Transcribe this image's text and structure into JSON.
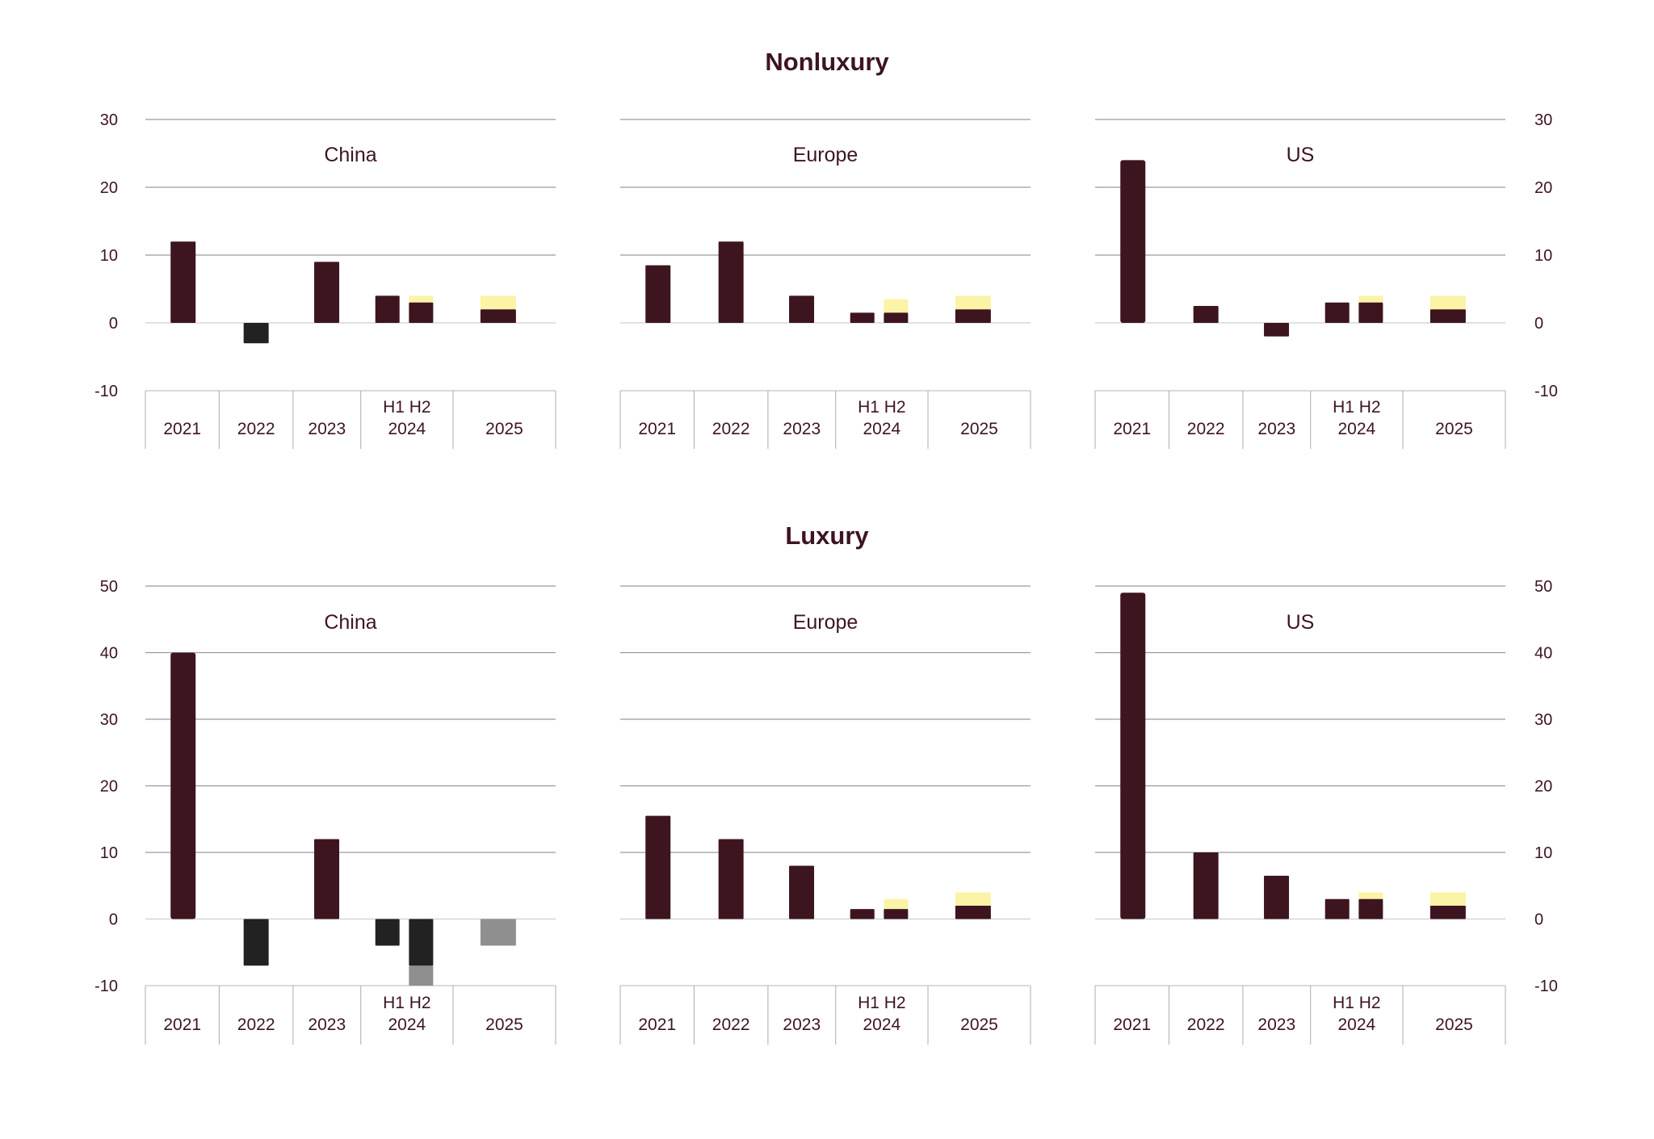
{
  "colors": {
    "actual": "#3d151f",
    "decline": "#222222",
    "forecast_decline": "#8f8f8f",
    "forecast_range": "#fbf3a6",
    "text": "#3d151f"
  },
  "sections": [
    {
      "title": "Nonluxury",
      "ylim": [
        -10,
        30
      ],
      "yticks": [
        "30",
        "20",
        "10",
        "0",
        "-10"
      ]
    },
    {
      "title": "Luxury",
      "ylim": [
        -10,
        50
      ],
      "yticks": [
        "50",
        "40",
        "30",
        "20",
        "10",
        "0",
        "-10"
      ]
    }
  ],
  "categories": [
    "2021",
    "2022",
    "2023",
    "2024",
    "2025"
  ],
  "half_labels": "H1 H2",
  "chart_data": [
    {
      "type": "bar",
      "section": "Nonluxury",
      "title": "China",
      "ylim": [
        -10,
        30
      ],
      "bars": [
        {
          "category": "2021",
          "value": 12,
          "kind": "actual"
        },
        {
          "category": "2022",
          "value": -3,
          "kind": "decline"
        },
        {
          "category": "2023",
          "value": 9,
          "kind": "actual"
        },
        {
          "category": "2024",
          "half": "H1",
          "value": 4,
          "kind": "actual"
        },
        {
          "category": "2024",
          "half": "H2",
          "value": 3,
          "range_top": 4,
          "kind": "actual"
        },
        {
          "category": "2025",
          "value": 2,
          "range_top": 4,
          "kind": "actual"
        }
      ]
    },
    {
      "type": "bar",
      "section": "Nonluxury",
      "title": "Europe",
      "ylim": [
        -10,
        30
      ],
      "bars": [
        {
          "category": "2021",
          "value": 8.5,
          "kind": "actual"
        },
        {
          "category": "2022",
          "value": 12,
          "kind": "actual"
        },
        {
          "category": "2023",
          "value": 4,
          "kind": "actual"
        },
        {
          "category": "2024",
          "half": "H1",
          "value": 1.5,
          "kind": "actual"
        },
        {
          "category": "2024",
          "half": "H2",
          "value": 1.5,
          "range_top": 3.5,
          "kind": "actual"
        },
        {
          "category": "2025",
          "value": 2,
          "range_top": 4,
          "kind": "actual"
        }
      ]
    },
    {
      "type": "bar",
      "section": "Nonluxury",
      "title": "US",
      "ylim": [
        -10,
        30
      ],
      "bars": [
        {
          "category": "2021",
          "value": 24,
          "kind": "actual"
        },
        {
          "category": "2022",
          "value": 2.5,
          "kind": "actual"
        },
        {
          "category": "2023",
          "value": -2,
          "kind": "actual"
        },
        {
          "category": "2024",
          "half": "H1",
          "value": 3,
          "kind": "actual"
        },
        {
          "category": "2024",
          "half": "H2",
          "value": 3,
          "range_top": 4,
          "kind": "actual"
        },
        {
          "category": "2025",
          "value": 2,
          "range_top": 4,
          "kind": "actual"
        }
      ]
    },
    {
      "type": "bar",
      "section": "Luxury",
      "title": "China",
      "ylim": [
        -10,
        50
      ],
      "bars": [
        {
          "category": "2021",
          "value": 40,
          "kind": "actual"
        },
        {
          "category": "2022",
          "value": -7,
          "kind": "decline"
        },
        {
          "category": "2023",
          "value": 12,
          "kind": "actual"
        },
        {
          "category": "2024",
          "half": "H1",
          "value": -4,
          "kind": "decline"
        },
        {
          "category": "2024",
          "half": "H2",
          "value": -7,
          "range_bottom": -10,
          "kind": "decline"
        },
        {
          "category": "2025",
          "value": -4,
          "kind": "forecast_decline"
        }
      ]
    },
    {
      "type": "bar",
      "section": "Luxury",
      "title": "Europe",
      "ylim": [
        -10,
        50
      ],
      "bars": [
        {
          "category": "2021",
          "value": 15.5,
          "kind": "actual"
        },
        {
          "category": "2022",
          "value": 12,
          "kind": "actual"
        },
        {
          "category": "2023",
          "value": 8,
          "kind": "actual"
        },
        {
          "category": "2024",
          "half": "H1",
          "value": 1.5,
          "kind": "actual"
        },
        {
          "category": "2024",
          "half": "H2",
          "value": 1.5,
          "range_top": 3,
          "kind": "actual"
        },
        {
          "category": "2025",
          "value": 2,
          "range_top": 4,
          "kind": "actual"
        }
      ]
    },
    {
      "type": "bar",
      "section": "Luxury",
      "title": "US",
      "ylim": [
        -10,
        50
      ],
      "bars": [
        {
          "category": "2021",
          "value": 49,
          "kind": "actual"
        },
        {
          "category": "2022",
          "value": 10,
          "kind": "actual"
        },
        {
          "category": "2023",
          "value": 6.5,
          "kind": "actual"
        },
        {
          "category": "2024",
          "half": "H1",
          "value": 3,
          "kind": "actual"
        },
        {
          "category": "2024",
          "half": "H2",
          "value": 3,
          "range_top": 4,
          "kind": "actual"
        },
        {
          "category": "2025",
          "value": 2,
          "range_top": 4,
          "kind": "actual"
        }
      ]
    }
  ]
}
